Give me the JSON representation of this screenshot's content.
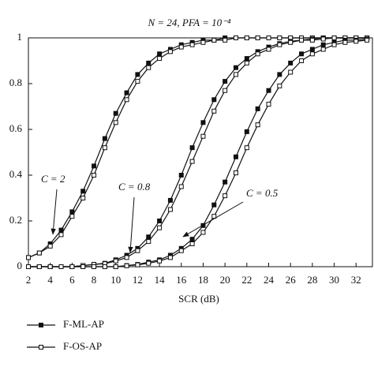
{
  "chart_data": {
    "type": "line",
    "title": "N = 24, PFA = 10⁻⁴",
    "x_label": "SCR (dB)",
    "x": [
      2,
      3,
      4,
      5,
      6,
      7,
      8,
      9,
      10,
      11,
      12,
      13,
      14,
      15,
      16,
      17,
      18,
      19,
      20,
      21,
      22,
      23,
      24,
      25,
      26,
      27,
      28,
      29,
      30,
      31,
      32,
      33
    ],
    "series": [
      {
        "name": "F-ML-AP",
        "color": "#111111",
        "marker": "filled-square",
        "values": [
          0.04,
          0.06,
          0.1,
          0.16,
          0.24,
          0.33,
          0.44,
          0.56,
          0.67,
          0.76,
          0.84,
          0.89,
          0.93,
          0.95,
          0.97,
          0.98,
          0.99,
          0.99,
          1,
          1,
          1,
          1,
          1,
          1,
          1,
          1,
          1,
          1,
          1,
          1,
          1,
          1
        ]
      },
      {
        "name": "F-OS-AP",
        "color": "#111111",
        "marker": "open-square",
        "values": [
          0.04,
          0.06,
          0.09,
          0.14,
          0.22,
          0.3,
          0.4,
          0.52,
          0.63,
          0.73,
          0.81,
          0.87,
          0.91,
          0.94,
          0.96,
          0.97,
          0.98,
          0.99,
          0.99,
          1,
          1,
          1,
          1,
          1,
          1,
          1,
          1,
          1,
          1,
          1,
          1,
          1
        ]
      },
      {
        "name": "F-ML-AP",
        "color": "#111111",
        "marker": "filled-square",
        "values": [
          0,
          0,
          0,
          0,
          0,
          0.005,
          0.01,
          0.015,
          0.03,
          0.05,
          0.08,
          0.13,
          0.2,
          0.29,
          0.4,
          0.52,
          0.63,
          0.73,
          0.81,
          0.87,
          0.91,
          0.94,
          0.96,
          0.975,
          0.985,
          0.99,
          0.995,
          1,
          1,
          1,
          1,
          1
        ]
      },
      {
        "name": "F-OS-AP",
        "color": "#111111",
        "marker": "open-square",
        "values": [
          0,
          0,
          0,
          0,
          0,
          0.005,
          0.01,
          0.013,
          0.025,
          0.04,
          0.07,
          0.11,
          0.17,
          0.25,
          0.35,
          0.46,
          0.57,
          0.68,
          0.77,
          0.84,
          0.89,
          0.93,
          0.95,
          0.97,
          0.98,
          0.99,
          0.99,
          0.995,
          1,
          1,
          1,
          1
        ]
      },
      {
        "name": "F-ML-AP",
        "color": "#111111",
        "marker": "filled-square",
        "values": [
          0,
          0,
          0,
          0,
          0,
          0,
          0,
          0,
          0,
          0.005,
          0.01,
          0.02,
          0.03,
          0.05,
          0.08,
          0.12,
          0.18,
          0.27,
          0.37,
          0.48,
          0.59,
          0.69,
          0.77,
          0.84,
          0.89,
          0.93,
          0.95,
          0.97,
          0.98,
          0.99,
          0.99,
          0.995
        ]
      },
      {
        "name": "F-OS-AP",
        "color": "#111111",
        "marker": "open-square",
        "values": [
          0,
          0,
          0,
          0,
          0,
          0,
          0,
          0,
          0,
          0.004,
          0.008,
          0.015,
          0.025,
          0.04,
          0.07,
          0.1,
          0.15,
          0.22,
          0.31,
          0.41,
          0.52,
          0.62,
          0.71,
          0.79,
          0.85,
          0.9,
          0.93,
          0.95,
          0.97,
          0.98,
          0.985,
          0.99
        ]
      }
    ],
    "annotations": [
      {
        "text": "C = 2"
      },
      {
        "text": "C = 0.8"
      },
      {
        "text": "C = 0.5"
      }
    ],
    "xlim": [
      2,
      33.5
    ],
    "xticks": [
      2,
      4,
      6,
      8,
      10,
      12,
      14,
      16,
      18,
      20,
      22,
      24,
      26,
      28,
      30,
      32
    ],
    "ylim": [
      0,
      1
    ],
    "yticks": [
      0,
      0.2,
      0.4,
      0.6,
      0.8,
      1
    ],
    "grid": false,
    "legend": "below"
  }
}
